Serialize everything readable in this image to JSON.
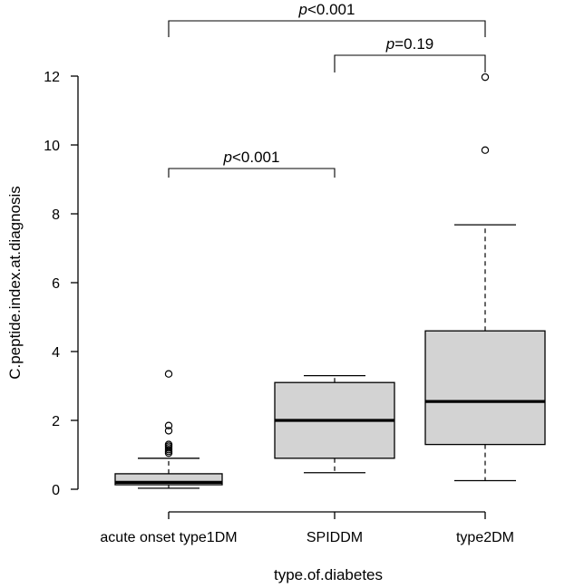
{
  "chart_data": {
    "type": "boxplot",
    "xlabel": "type.of.diabetes",
    "ylabel": "C.peptide.index.at.diagnosis",
    "ylim": [
      0,
      12
    ],
    "yticks": [
      0,
      2,
      4,
      6,
      8,
      10,
      12
    ],
    "categories": [
      "acute onset type1DM",
      "SPIDDM",
      "type2DM"
    ],
    "groups": [
      {
        "name": "acute onset type1DM",
        "whisker_low": 0.03,
        "q1": 0.13,
        "median": 0.2,
        "q3": 0.45,
        "whisker_high": 0.9,
        "outliers": [
          1.05,
          1.1,
          1.15,
          1.2,
          1.25,
          1.3,
          1.7,
          1.85,
          3.35
        ]
      },
      {
        "name": "SPIDDM",
        "whisker_low": 0.48,
        "q1": 0.9,
        "median": 2.0,
        "q3": 3.1,
        "whisker_high": 3.3,
        "outliers": []
      },
      {
        "name": "type2DM",
        "whisker_low": 0.25,
        "q1": 1.3,
        "median": 2.55,
        "q3": 4.6,
        "whisker_high": 7.68,
        "outliers": [
          9.85,
          11.97
        ]
      }
    ],
    "comparisons": [
      {
        "from": 0,
        "to": 1,
        "p_symbol": "p",
        "p_value": "<0.001"
      },
      {
        "from": 1,
        "to": 2,
        "p_symbol": "p",
        "p_value": "=0.19"
      },
      {
        "from": 0,
        "to": 2,
        "p_symbol": "p",
        "p_value": "<0.001"
      }
    ],
    "colors": {
      "box_fill": "#d3d3d3",
      "stroke": "#000000"
    }
  }
}
